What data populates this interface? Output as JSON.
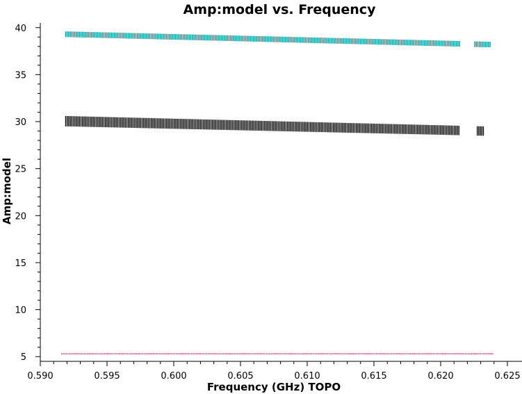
{
  "chart_data": {
    "type": "scatter",
    "title": "Amp:model vs. Frequency",
    "xlabel": "Frequency (GHz) TOPO",
    "ylabel": "Amp:model",
    "xlim": [
      0.59,
      0.625
    ],
    "ylim": [
      4.5,
      40.5
    ],
    "xticks": [
      "0.590",
      "0.595",
      "0.600",
      "0.605",
      "0.610",
      "0.615",
      "0.620",
      "0.625"
    ],
    "yticks": [
      "5",
      "10",
      "15",
      "20",
      "25",
      "30",
      "35",
      "40"
    ],
    "grid": false,
    "series": [
      {
        "color": "#009999",
        "x_range": [
          0.5919,
          0.6237
        ],
        "upper": [
          39.6,
          38.5
        ],
        "lower": [
          39.0,
          37.9
        ],
        "gaps": [
          [
            0.6215,
            0.6225
          ]
        ]
      },
      {
        "color": "#000000",
        "x_range": [
          0.5919,
          0.6232
        ],
        "upper": [
          30.6,
          29.5
        ],
        "lower": [
          29.5,
          28.5
        ],
        "gaps": [
          [
            0.6214,
            0.6227
          ]
        ]
      },
      {
        "color": "#cc0044",
        "x_range": [
          0.5916,
          0.6239
        ],
        "upper": [
          5.35,
          5.35
        ],
        "lower": [
          5.35,
          5.35
        ],
        "gaps": []
      }
    ]
  }
}
